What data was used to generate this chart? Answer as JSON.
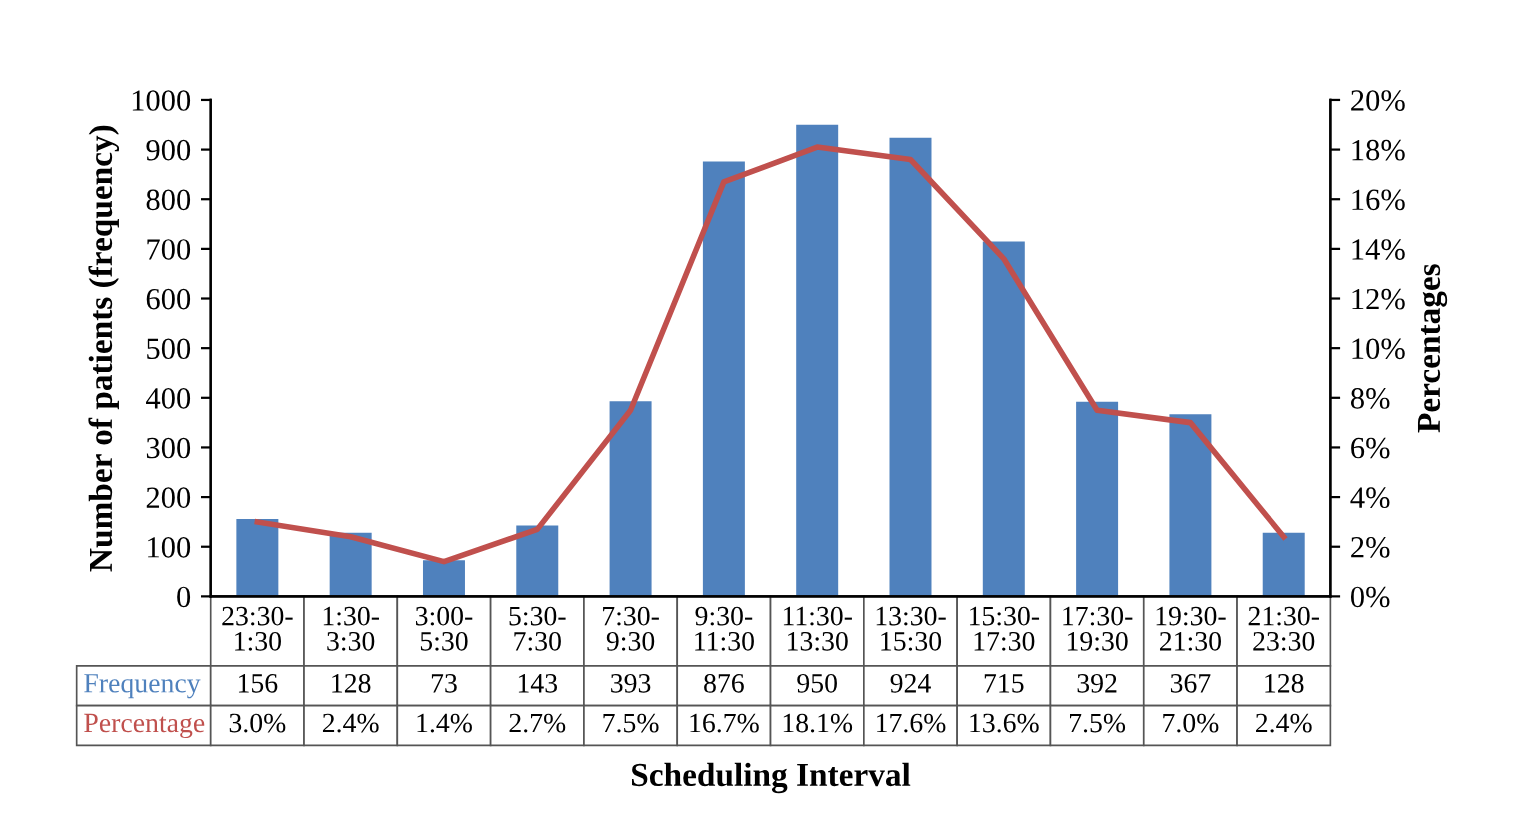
{
  "chart_data": {
    "type": "bar",
    "xlabel": "Scheduling Interval",
    "ylabel": "Number of patients (frequency)",
    "y2label": "Percentages",
    "categories": [
      "23:30-\n1:30",
      "1:30-\n3:30",
      "3:00-\n5:30",
      "5:30-\n7:30",
      "7:30-\n9:30",
      "9:30-\n11:30",
      "11:30-\n13:30",
      "13:30-\n15:30",
      "15:30-\n17:30",
      "17:30-\n19:30",
      "19:30-\n21:30",
      "21:30-\n23:30"
    ],
    "series": [
      {
        "name": "Frequency",
        "color": "#4f81bd",
        "values": [
          156,
          128,
          73,
          143,
          393,
          876,
          950,
          924,
          715,
          392,
          367,
          128
        ],
        "value_labels": [
          "156",
          "128",
          "73",
          "143",
          "393",
          "876",
          "950",
          "924",
          "715",
          "392",
          "367",
          "128"
        ]
      },
      {
        "name": "Percentage",
        "type": "line",
        "axis": "y2",
        "color": "#c0504d",
        "values": [
          3.0,
          2.4,
          1.4,
          2.7,
          7.5,
          16.7,
          18.1,
          17.6,
          13.6,
          7.5,
          7.0,
          2.4
        ],
        "value_labels": [
          "3.0%",
          "2.4%",
          "1.4%",
          "2.7%",
          "7.5%",
          "16.7%",
          "18.1%",
          "17.6%",
          "13.6%",
          "7.5%",
          "7.0%",
          "2.4%"
        ]
      }
    ],
    "ylim": [
      0,
      1000
    ],
    "yticks": [
      0,
      100,
      200,
      300,
      400,
      500,
      600,
      700,
      800,
      900,
      1000
    ],
    "y2lim": [
      0,
      20
    ],
    "y2ticks": [
      {
        "value": 0,
        "label": "0%"
      },
      {
        "value": 2,
        "label": "2%"
      },
      {
        "value": 4,
        "label": "4%"
      },
      {
        "value": 6,
        "label": "6%"
      },
      {
        "value": 8,
        "label": "8%"
      },
      {
        "value": 10,
        "label": "10%"
      },
      {
        "value": 12,
        "label": "12%"
      },
      {
        "value": 14,
        "label": "14%"
      },
      {
        "value": 16,
        "label": "16%"
      },
      {
        "value": 18,
        "label": "18%"
      },
      {
        "value": 20,
        "label": "20%"
      }
    ],
    "grid": false,
    "legend": false,
    "marker": "none",
    "line_style": "solid"
  }
}
